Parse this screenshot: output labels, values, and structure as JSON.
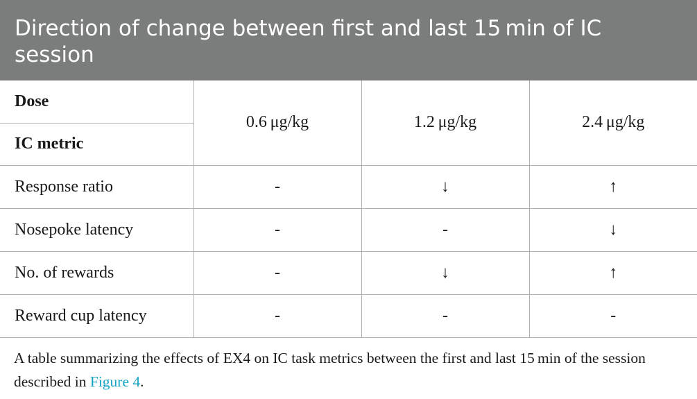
{
  "title": "Direction of change between first and last 15 min of IC session",
  "header": {
    "row_label_top": "Dose",
    "row_label_bottom": "IC metric",
    "doses": [
      "0.6 μg/kg",
      "1.2 μg/kg",
      "2.4 μg/kg"
    ]
  },
  "rows": [
    {
      "metric": "Response ratio",
      "values": [
        "-",
        "↓",
        "↑"
      ]
    },
    {
      "metric": "Nosepoke latency",
      "values": [
        "-",
        "-",
        "↓"
      ]
    },
    {
      "metric": "No. of rewards",
      "values": [
        "-",
        "↓",
        "↑"
      ]
    },
    {
      "metric": "Reward cup latency",
      "values": [
        "-",
        "-",
        "-"
      ]
    }
  ],
  "caption": {
    "text": "A table summarizing the effects of EX4 on IC task metrics between the first and last 15 min of the session described in ",
    "link": "Figure 4",
    "end": "."
  }
}
